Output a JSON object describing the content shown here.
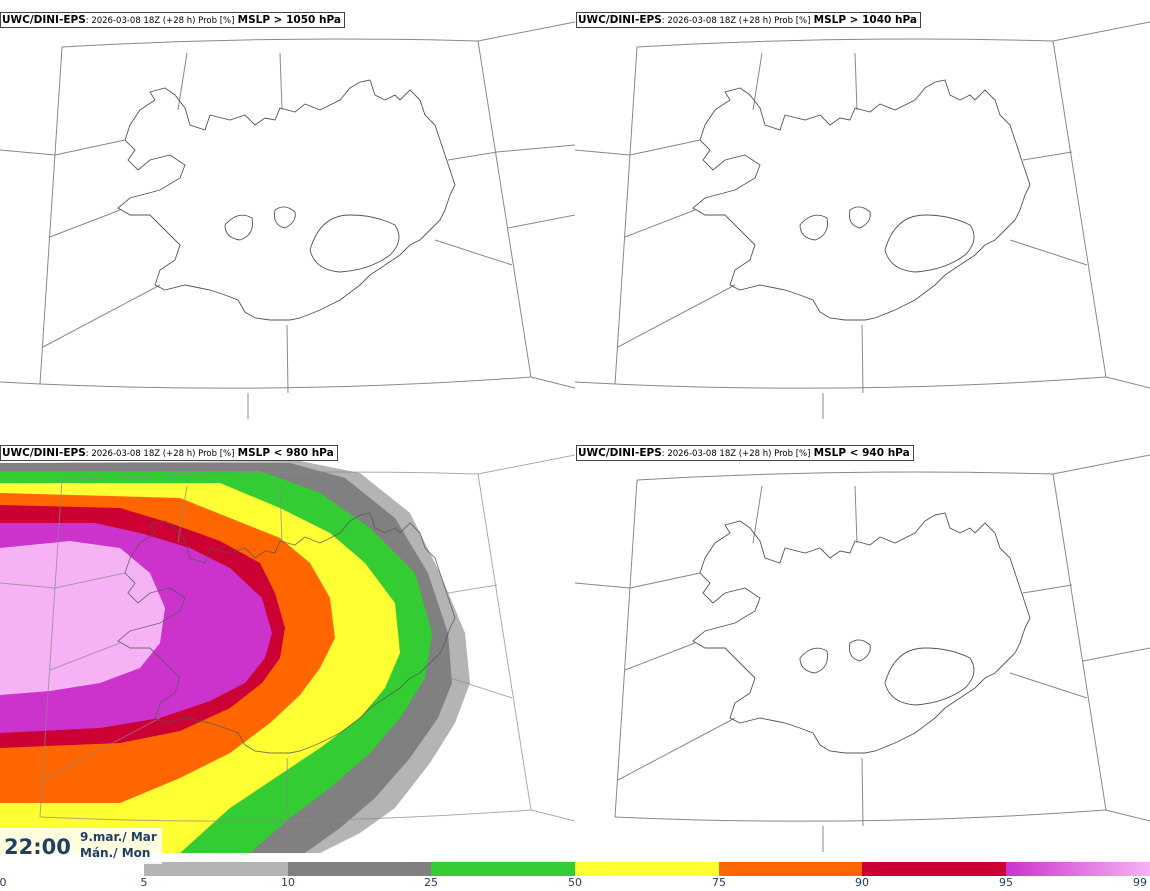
{
  "panels": [
    {
      "model": "UWC/DINI-EPS",
      "run": ": 2026-03-08 18Z (+28 h) Prob [%]",
      "threshold": "MSLP > 1050 hPa"
    },
    {
      "model": "UWC/DINI-EPS",
      "run": ": 2026-03-08 18Z (+28 h) Prob [%]",
      "threshold": "MSLP > 1040 hPa"
    },
    {
      "model": "UWC/DINI-EPS",
      "run": ": 2026-03-08 18Z (+28 h) Prob [%]",
      "threshold": "MSLP < 980 hPa"
    },
    {
      "model": "UWC/DINI-EPS",
      "run": ": 2026-03-08 18Z (+28 h) Prob [%]",
      "threshold": "MSLP < 940 hPa"
    }
  ],
  "valid_time": {
    "time": "22:00",
    "date_is": "9.mar./ Mar",
    "day": "Mán./ Mon"
  },
  "colorbar": {
    "ticks": [
      "0",
      "5",
      "10",
      "25",
      "50",
      "75",
      "90",
      "95",
      "99"
    ],
    "colors": [
      "#ffffff",
      "#b4b4b4",
      "#808080",
      "#33cc33",
      "#ffff33",
      "#ff6600",
      "#cc0033",
      "#cc33cc",
      "#f5b3f5"
    ]
  }
}
